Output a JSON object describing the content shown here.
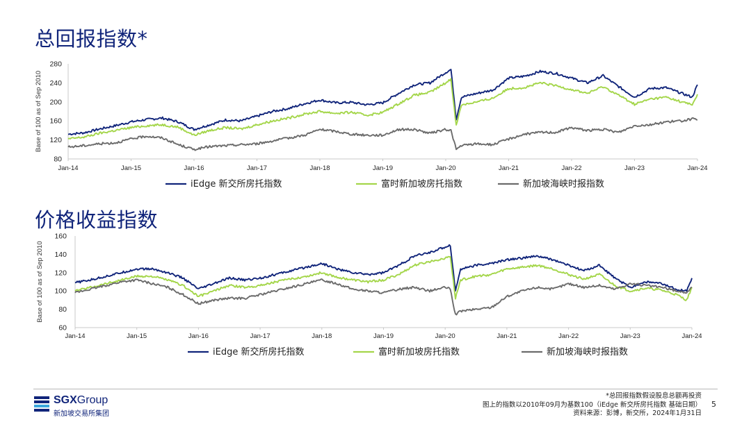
{
  "slide": {
    "title_total": "总回报指数*",
    "title_price": "价格收益指数",
    "page_number": "5",
    "notes": [
      "*总回报指数假设股息总额再投资",
      "图上的指数以2010年09月为基数100（iEdge 新交所房托指数 基础日期）",
      "资料来源：彭博，新交所，2024年1月31日"
    ]
  },
  "logo": {
    "brand_bold": "SGX",
    "brand_rest": "Group",
    "subtitle": "新加坡交易所集团",
    "bar_colors": [
      "#10247a",
      "#10247a",
      "#3aa6dc",
      "#10247a"
    ]
  },
  "chart_data": [
    {
      "type": "line",
      "title": "总回报指数*",
      "ylabel": "Base of 100 as of Sep 2010",
      "xlabel": "",
      "x_ticks": [
        "Jan-14",
        "Jan-15",
        "Jan-16",
        "Jan-17",
        "Jan-18",
        "Jan-19",
        "Jan-20",
        "Jan-21",
        "Jan-22",
        "Jan-23",
        "Jan-24"
      ],
      "x": [
        "2014-01",
        "2014-04",
        "2014-07",
        "2014-10",
        "2015-01",
        "2015-04",
        "2015-07",
        "2015-10",
        "2016-01",
        "2016-04",
        "2016-07",
        "2016-10",
        "2017-01",
        "2017-04",
        "2017-07",
        "2017-10",
        "2018-01",
        "2018-04",
        "2018-07",
        "2018-10",
        "2019-01",
        "2019-04",
        "2019-07",
        "2019-10",
        "2020-01",
        "2020-02",
        "2020-03",
        "2020-04",
        "2020-07",
        "2020-10",
        "2021-01",
        "2021-04",
        "2021-07",
        "2021-10",
        "2022-01",
        "2022-04",
        "2022-07",
        "2022-10",
        "2023-01",
        "2023-04",
        "2023-07",
        "2023-10",
        "2023-12",
        "2024-01"
      ],
      "ylim": [
        80,
        280
      ],
      "yticks": [
        80,
        120,
        160,
        200,
        240,
        280
      ],
      "grid": false,
      "legend_position": "bottom",
      "series": [
        {
          "name": "iEdge 新交所房托指数",
          "color": "#10247a",
          "values": [
            132,
            135,
            143,
            150,
            158,
            163,
            166,
            158,
            142,
            152,
            162,
            160,
            170,
            180,
            186,
            196,
            204,
            198,
            199,
            194,
            198,
            218,
            236,
            240,
            262,
            268,
            164,
            210,
            218,
            225,
            250,
            254,
            264,
            260,
            250,
            240,
            255,
            232,
            210,
            228,
            230,
            218,
            210,
            236
          ]
        },
        {
          "name": "富时新加坡房托指数",
          "color": "#a4d64a",
          "values": [
            122,
            126,
            134,
            140,
            146,
            150,
            152,
            147,
            130,
            140,
            146,
            143,
            152,
            160,
            166,
            174,
            180,
            176,
            178,
            172,
            178,
            196,
            214,
            220,
            240,
            248,
            150,
            194,
            200,
            208,
            228,
            230,
            240,
            234,
            226,
            218,
            232,
            214,
            195,
            206,
            210,
            200,
            194,
            216
          ]
        },
        {
          "name": "新加坡海峡时报指数",
          "color": "#6b6b6b",
          "values": [
            105,
            108,
            112,
            114,
            122,
            128,
            124,
            110,
            100,
            106,
            108,
            110,
            112,
            118,
            124,
            130,
            142,
            138,
            132,
            130,
            130,
            142,
            142,
            134,
            142,
            140,
            100,
            108,
            112,
            110,
            122,
            132,
            136,
            136,
            146,
            140,
            142,
            136,
            150,
            152,
            158,
            160,
            164,
            162
          ]
        }
      ]
    },
    {
      "type": "line",
      "title": "价格收益指数",
      "ylabel": "Base of 100 as of Sep 2010",
      "xlabel": "",
      "x_ticks": [
        "Jan-14",
        "Jan-15",
        "Jan-16",
        "Jan-17",
        "Jan-18",
        "Jan-19",
        "Jan-20",
        "Jan-21",
        "Jan-22",
        "Jan-23",
        "Jan-24"
      ],
      "x": [
        "2014-01",
        "2014-04",
        "2014-07",
        "2014-10",
        "2015-01",
        "2015-04",
        "2015-07",
        "2015-10",
        "2016-01",
        "2016-04",
        "2016-07",
        "2016-10",
        "2017-01",
        "2017-04",
        "2017-07",
        "2017-10",
        "2018-01",
        "2018-04",
        "2018-07",
        "2018-10",
        "2019-01",
        "2019-04",
        "2019-07",
        "2019-10",
        "2020-01",
        "2020-02",
        "2020-03",
        "2020-04",
        "2020-07",
        "2020-10",
        "2021-01",
        "2021-04",
        "2021-07",
        "2021-10",
        "2022-01",
        "2022-04",
        "2022-07",
        "2022-10",
        "2023-01",
        "2023-04",
        "2023-07",
        "2023-10",
        "2023-12",
        "2024-01"
      ],
      "ylim": [
        60,
        160
      ],
      "yticks": [
        60,
        80,
        100,
        120,
        140,
        160
      ],
      "grid": false,
      "legend_position": "bottom",
      "series": [
        {
          "name": "iEdge 新交所房托指数",
          "color": "#10247a",
          "values": [
            109,
            112,
            116,
            120,
            124,
            124,
            120,
            114,
            102,
            108,
            114,
            112,
            114,
            118,
            122,
            126,
            130,
            124,
            120,
            118,
            120,
            128,
            138,
            142,
            148,
            150,
            100,
            124,
            128,
            130,
            134,
            136,
            138,
            134,
            128,
            122,
            128,
            114,
            104,
            110,
            108,
            102,
            100,
            114
          ]
        },
        {
          "name": "富时新加坡房托指数",
          "color": "#a4d64a",
          "values": [
            100,
            104,
            108,
            112,
            116,
            116,
            112,
            106,
            94,
            100,
            106,
            104,
            106,
            110,
            113,
            116,
            120,
            115,
            112,
            110,
            112,
            118,
            128,
            132,
            136,
            138,
            92,
            112,
            116,
            118,
            124,
            126,
            128,
            124,
            118,
            113,
            118,
            106,
            100,
            103,
            101,
            96,
            90,
            104
          ]
        },
        {
          "name": "新加坡海峡时报指数",
          "color": "#6b6b6b",
          "values": [
            98,
            102,
            106,
            110,
            112,
            108,
            104,
            96,
            86,
            90,
            92,
            92,
            96,
            100,
            104,
            108,
            112,
            108,
            102,
            100,
            98,
            102,
            104,
            100,
            104,
            102,
            74,
            78,
            80,
            82,
            94,
            100,
            104,
            102,
            108,
            104,
            106,
            102,
            108,
            106,
            104,
            100,
            98,
            104
          ]
        }
      ]
    }
  ]
}
